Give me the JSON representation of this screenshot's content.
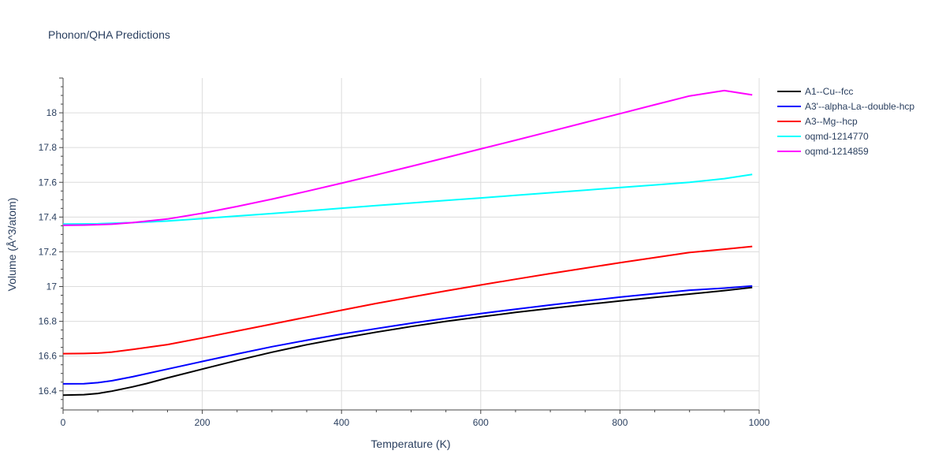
{
  "chart_data": {
    "type": "line",
    "title": "Phonon/QHA Predictions",
    "xlabel": "Temperature (K)",
    "ylabel": "Volume (Å^3/atom)",
    "xlim": [
      0,
      1000
    ],
    "ylim": [
      16.29,
      18.2
    ],
    "x_ticks": [
      0,
      200,
      400,
      600,
      800,
      1000
    ],
    "y_ticks": [
      16.4,
      16.6,
      16.8,
      17,
      17.2,
      17.4,
      17.6,
      17.8,
      18
    ],
    "x_tick_labels": [
      "0",
      "200",
      "400",
      "600",
      "800",
      "1000"
    ],
    "y_tick_labels": [
      "16.4",
      "16.6",
      "16.8",
      "17",
      "17.2",
      "17.4",
      "17.6",
      "17.8",
      "18"
    ],
    "grid": true,
    "legend_position": "top-right, outside plot",
    "series": [
      {
        "name": "A1--Cu--fcc",
        "color": "#000000",
        "x": [
          0,
          30,
          50,
          70,
          100,
          120,
          150,
          200,
          250,
          300,
          350,
          400,
          450,
          500,
          550,
          600,
          650,
          700,
          750,
          800,
          850,
          900,
          950,
          990
        ],
        "y": [
          16.375,
          16.378,
          16.385,
          16.398,
          16.423,
          16.442,
          16.474,
          16.525,
          16.575,
          16.622,
          16.665,
          16.703,
          16.738,
          16.77,
          16.8,
          16.826,
          16.851,
          16.874,
          16.896,
          16.917,
          16.938,
          16.957,
          16.977,
          16.995
        ]
      },
      {
        "name": "A3'--alpha-La--double-hcp",
        "color": "#0000ff",
        "x": [
          0,
          30,
          50,
          70,
          100,
          150,
          200,
          250,
          300,
          350,
          400,
          450,
          500,
          550,
          600,
          650,
          700,
          750,
          800,
          850,
          900,
          950,
          990
        ],
        "y": [
          16.44,
          16.441,
          16.447,
          16.458,
          16.481,
          16.525,
          16.569,
          16.612,
          16.654,
          16.691,
          16.726,
          16.758,
          16.789,
          16.817,
          16.845,
          16.87,
          16.894,
          16.917,
          16.939,
          16.959,
          16.979,
          16.991,
          17.003
        ]
      },
      {
        "name": "A3--Mg--hcp",
        "color": "#ff0000",
        "x": [
          0,
          30,
          50,
          70,
          100,
          150,
          200,
          250,
          300,
          350,
          400,
          450,
          500,
          550,
          600,
          650,
          700,
          750,
          800,
          850,
          900,
          950,
          990
        ],
        "y": [
          16.614,
          16.615,
          16.617,
          16.623,
          16.638,
          16.666,
          16.704,
          16.744,
          16.784,
          16.824,
          16.864,
          16.903,
          16.939,
          16.975,
          17.009,
          17.042,
          17.075,
          17.106,
          17.137,
          17.167,
          17.196,
          17.215,
          17.231
        ]
      },
      {
        "name": "oqmd-1214770",
        "color": "#00ffff",
        "x": [
          0,
          50,
          100,
          150,
          200,
          250,
          300,
          350,
          400,
          450,
          500,
          550,
          600,
          650,
          700,
          750,
          800,
          850,
          900,
          950,
          990
        ],
        "y": [
          17.36,
          17.361,
          17.368,
          17.377,
          17.391,
          17.406,
          17.42,
          17.435,
          17.451,
          17.466,
          17.481,
          17.496,
          17.51,
          17.525,
          17.54,
          17.555,
          17.57,
          17.585,
          17.6,
          17.621,
          17.645
        ]
      },
      {
        "name": "oqmd-1214859",
        "color": "#ff00ff",
        "x": [
          0,
          30,
          50,
          70,
          100,
          150,
          200,
          250,
          300,
          350,
          400,
          450,
          500,
          550,
          600,
          650,
          700,
          750,
          800,
          850,
          900,
          950,
          990
        ],
        "y": [
          17.353,
          17.354,
          17.356,
          17.359,
          17.368,
          17.389,
          17.422,
          17.461,
          17.503,
          17.548,
          17.595,
          17.643,
          17.692,
          17.742,
          17.792,
          17.842,
          17.893,
          17.944,
          17.995,
          18.046,
          18.097,
          18.128,
          18.103
        ]
      }
    ]
  }
}
